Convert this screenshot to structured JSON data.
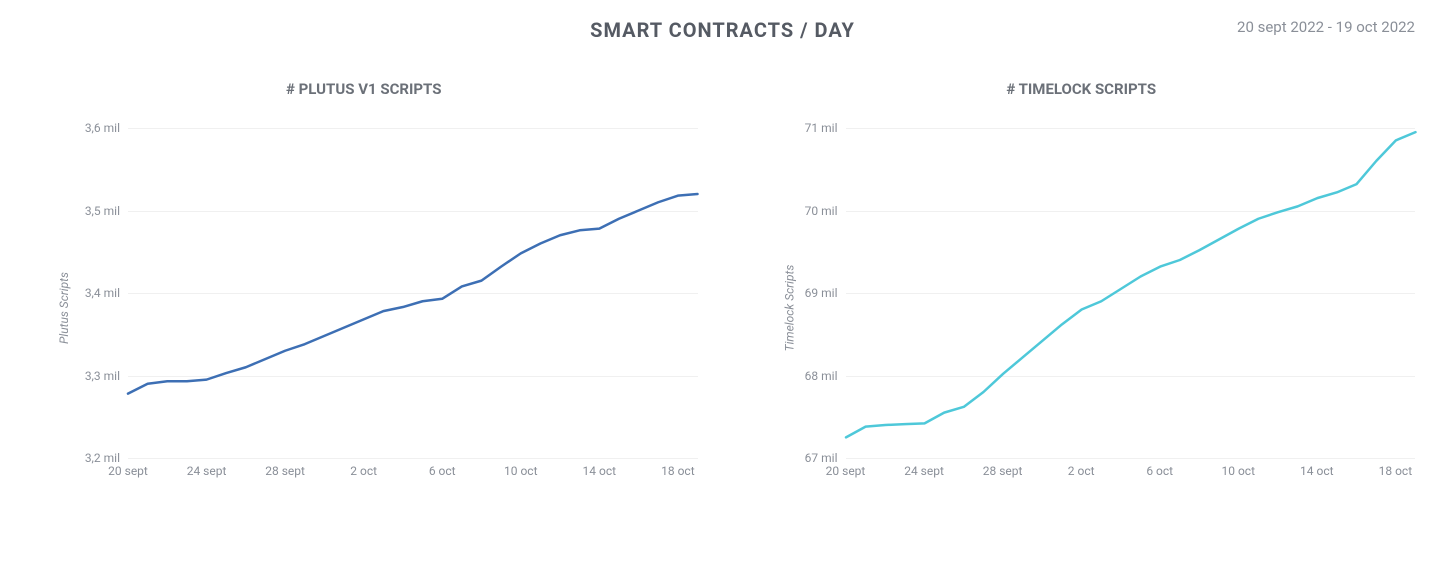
{
  "header": {
    "title": "SMART CONTRACTS / DAY",
    "date_range": "20 sept 2022 - 19 oct 2022"
  },
  "colors": {
    "title_text": "#555a63",
    "muted_text": "#8a8f98",
    "grid_line": "#f0f0f0",
    "background": "#ffffff"
  },
  "charts": [
    {
      "id": "plutus",
      "title": "# PLUTUS V1 SCRIPTS",
      "y_axis_label": "Plutus Scripts",
      "line_color": "#3d6fb4",
      "line_width": 2.5,
      "ylim": [
        3.2,
        3.6
      ],
      "y_ticks": [
        {
          "value": 3.2,
          "label": "3,2 mil"
        },
        {
          "value": 3.3,
          "label": "3,3 mil"
        },
        {
          "value": 3.4,
          "label": "3,4 mil"
        },
        {
          "value": 3.5,
          "label": "3,5 mil"
        },
        {
          "value": 3.6,
          "label": "3,6 mil"
        }
      ],
      "x_ticks": [
        {
          "index": 0,
          "label": "20 sept"
        },
        {
          "index": 4,
          "label": "24 sept"
        },
        {
          "index": 8,
          "label": "28 sept"
        },
        {
          "index": 12,
          "label": "2 oct"
        },
        {
          "index": 16,
          "label": "6 oct"
        },
        {
          "index": 20,
          "label": "10 oct"
        },
        {
          "index": 24,
          "label": "14 oct"
        },
        {
          "index": 28,
          "label": "18 oct"
        }
      ],
      "x_count": 30,
      "series": [
        3.278,
        3.29,
        3.293,
        3.293,
        3.295,
        3.303,
        3.31,
        3.32,
        3.33,
        3.338,
        3.348,
        3.358,
        3.368,
        3.378,
        3.383,
        3.39,
        3.393,
        3.408,
        3.415,
        3.432,
        3.448,
        3.46,
        3.47,
        3.476,
        3.478,
        3.49,
        3.5,
        3.51,
        3.518,
        3.52
      ]
    },
    {
      "id": "timelock",
      "title": "# TIMELOCK SCRIPTS",
      "y_axis_label": "Timelock Scripts",
      "line_color": "#4ec8d9",
      "line_width": 2.5,
      "ylim": [
        67,
        71
      ],
      "y_ticks": [
        {
          "value": 67,
          "label": "67 mil"
        },
        {
          "value": 68,
          "label": "68 mil"
        },
        {
          "value": 69,
          "label": "69 mil"
        },
        {
          "value": 70,
          "label": "70 mil"
        },
        {
          "value": 71,
          "label": "71 mil"
        }
      ],
      "x_ticks": [
        {
          "index": 0,
          "label": "20 sept"
        },
        {
          "index": 4,
          "label": "24 sept"
        },
        {
          "index": 8,
          "label": "28 sept"
        },
        {
          "index": 12,
          "label": "2 oct"
        },
        {
          "index": 16,
          "label": "6 oct"
        },
        {
          "index": 20,
          "label": "10 oct"
        },
        {
          "index": 24,
          "label": "14 oct"
        },
        {
          "index": 28,
          "label": "18 oct"
        }
      ],
      "x_count": 30,
      "series": [
        67.25,
        67.38,
        67.4,
        67.41,
        67.42,
        67.55,
        67.62,
        67.8,
        68.02,
        68.22,
        68.42,
        68.62,
        68.8,
        68.9,
        69.05,
        69.2,
        69.32,
        69.4,
        69.52,
        69.65,
        69.78,
        69.9,
        69.98,
        70.05,
        70.15,
        70.22,
        70.32,
        70.6,
        70.85,
        70.95
      ]
    }
  ]
}
